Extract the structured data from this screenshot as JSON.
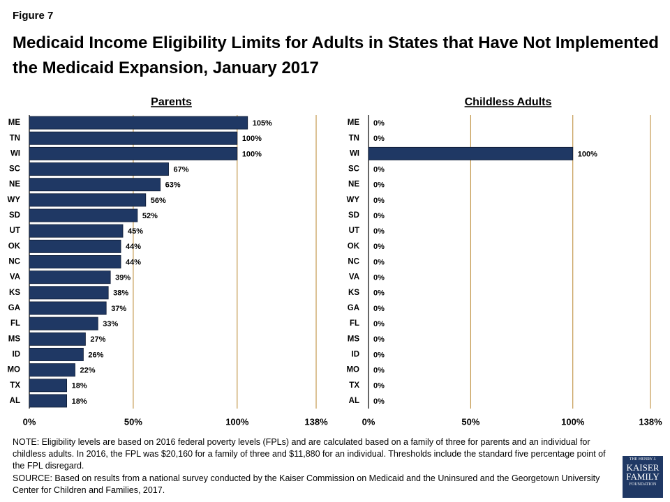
{
  "figure": "Figure 7",
  "title": "Medicaid Income Eligibility Limits for Adults in States that Have Not Implemented the Medicaid Expansion, January 2017",
  "chart_data": [
    {
      "type": "bar",
      "orientation": "horizontal",
      "title": "Parents",
      "categories": [
        "ME",
        "TN",
        "WI",
        "SC",
        "NE",
        "WY",
        "SD",
        "UT",
        "OK",
        "NC",
        "VA",
        "KS",
        "GA",
        "FL",
        "MS",
        "ID",
        "MO",
        "TX",
        "AL"
      ],
      "values": [
        105,
        100,
        100,
        67,
        63,
        56,
        52,
        45,
        44,
        44,
        39,
        38,
        37,
        33,
        27,
        26,
        22,
        18,
        18
      ],
      "value_labels": [
        "105%",
        "100%",
        "100%",
        "67%",
        "63%",
        "56%",
        "52%",
        "45%",
        "44%",
        "44%",
        "39%",
        "38%",
        "37%",
        "33%",
        "27%",
        "26%",
        "22%",
        "18%",
        "18%"
      ],
      "color": "#1f3864",
      "grid_color": "#b8862e",
      "grid": true,
      "xlim": [
        0,
        138
      ],
      "xticks": [
        {
          "value": 0,
          "label": "0%"
        },
        {
          "value": 50,
          "label": "50%"
        },
        {
          "value": 100,
          "label": "100%"
        },
        {
          "value": 138,
          "label": "138%"
        }
      ]
    },
    {
      "type": "bar",
      "orientation": "horizontal",
      "title": "Childless Adults",
      "categories": [
        "ME",
        "TN",
        "WI",
        "SC",
        "NE",
        "WY",
        "SD",
        "UT",
        "OK",
        "NC",
        "VA",
        "KS",
        "GA",
        "FL",
        "MS",
        "ID",
        "MO",
        "TX",
        "AL"
      ],
      "values": [
        0,
        0,
        100,
        0,
        0,
        0,
        0,
        0,
        0,
        0,
        0,
        0,
        0,
        0,
        0,
        0,
        0,
        0,
        0
      ],
      "value_labels": [
        "0%",
        "0%",
        "100%",
        "0%",
        "0%",
        "0%",
        "0%",
        "0%",
        "0%",
        "0%",
        "0%",
        "0%",
        "0%",
        "0%",
        "0%",
        "0%",
        "0%",
        "0%",
        "0%"
      ],
      "color": "#1f3864",
      "grid_color": "#b8862e",
      "grid": true,
      "xlim": [
        0,
        138
      ],
      "xticks": [
        {
          "value": 0,
          "label": "0%"
        },
        {
          "value": 50,
          "label": "50%"
        },
        {
          "value": 100,
          "label": "100%"
        },
        {
          "value": 138,
          "label": "138%"
        }
      ]
    }
  ],
  "note": "NOTE: Eligibility levels are based on 2016 federal poverty levels (FPLs) and are calculated based on a family of three for parents and an individual for childless adults. In 2016, the FPL was $20,160 for a family of three and $11,880 for an individual. Thresholds include the standard five percentage point of the FPL disregard.",
  "source": "SOURCE: Based on results from a national survey conducted by the Kaiser Commission on Medicaid and the Uninsured and the Georgetown University Center for Children and Families, 2017.",
  "logo": [
    "THE HENRY J.",
    "KAISER",
    "FAMILY",
    "FOUNDATION"
  ]
}
